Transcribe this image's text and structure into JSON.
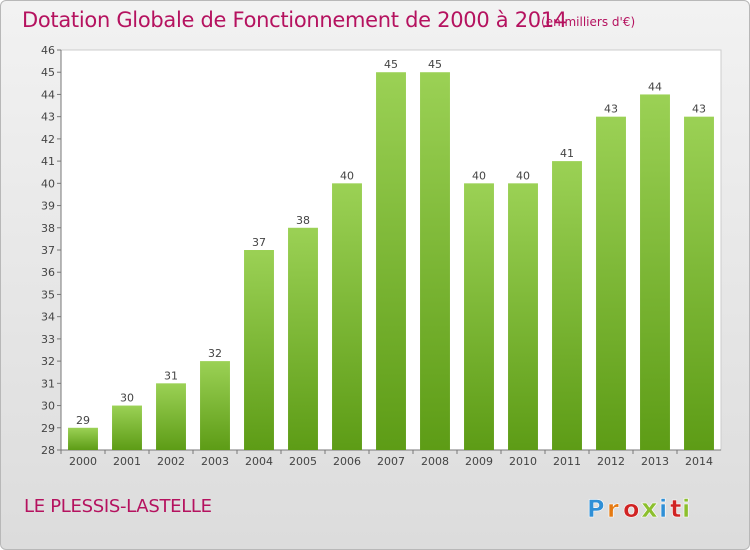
{
  "title": "Dotation Globale de Fonctionnement de 2000 à 2014",
  "subtitle": "(en milliers d'€)",
  "commune": "LE PLESSIS-LASTELLE",
  "logo": {
    "text": "Proxiti",
    "letter_colors": [
      "#2f8fd6",
      "#e57a12",
      "#d02323",
      "#8cbf2e",
      "#2f8fd6",
      "#d02323",
      "#8cbf2e"
    ]
  },
  "colors": {
    "title": "#b5125f",
    "bar_light": "#9bd155",
    "bar_dark": "#5d9c16",
    "plot_bg": "#ffffff"
  },
  "chart_data": {
    "type": "bar",
    "categories": [
      "2000",
      "2001",
      "2002",
      "2003",
      "2004",
      "2005",
      "2006",
      "2007",
      "2008",
      "2009",
      "2010",
      "2011",
      "2012",
      "2013",
      "2014"
    ],
    "values": [
      29,
      30,
      31,
      32,
      37,
      38,
      40,
      45,
      45,
      40,
      40,
      41,
      43,
      44,
      43
    ],
    "ylim": [
      28,
      46
    ],
    "yticks": [
      28,
      29,
      30,
      31,
      32,
      33,
      34,
      35,
      36,
      37,
      38,
      39,
      40,
      41,
      42,
      43,
      44,
      45,
      46
    ],
    "grid": false,
    "data_labels": true
  }
}
